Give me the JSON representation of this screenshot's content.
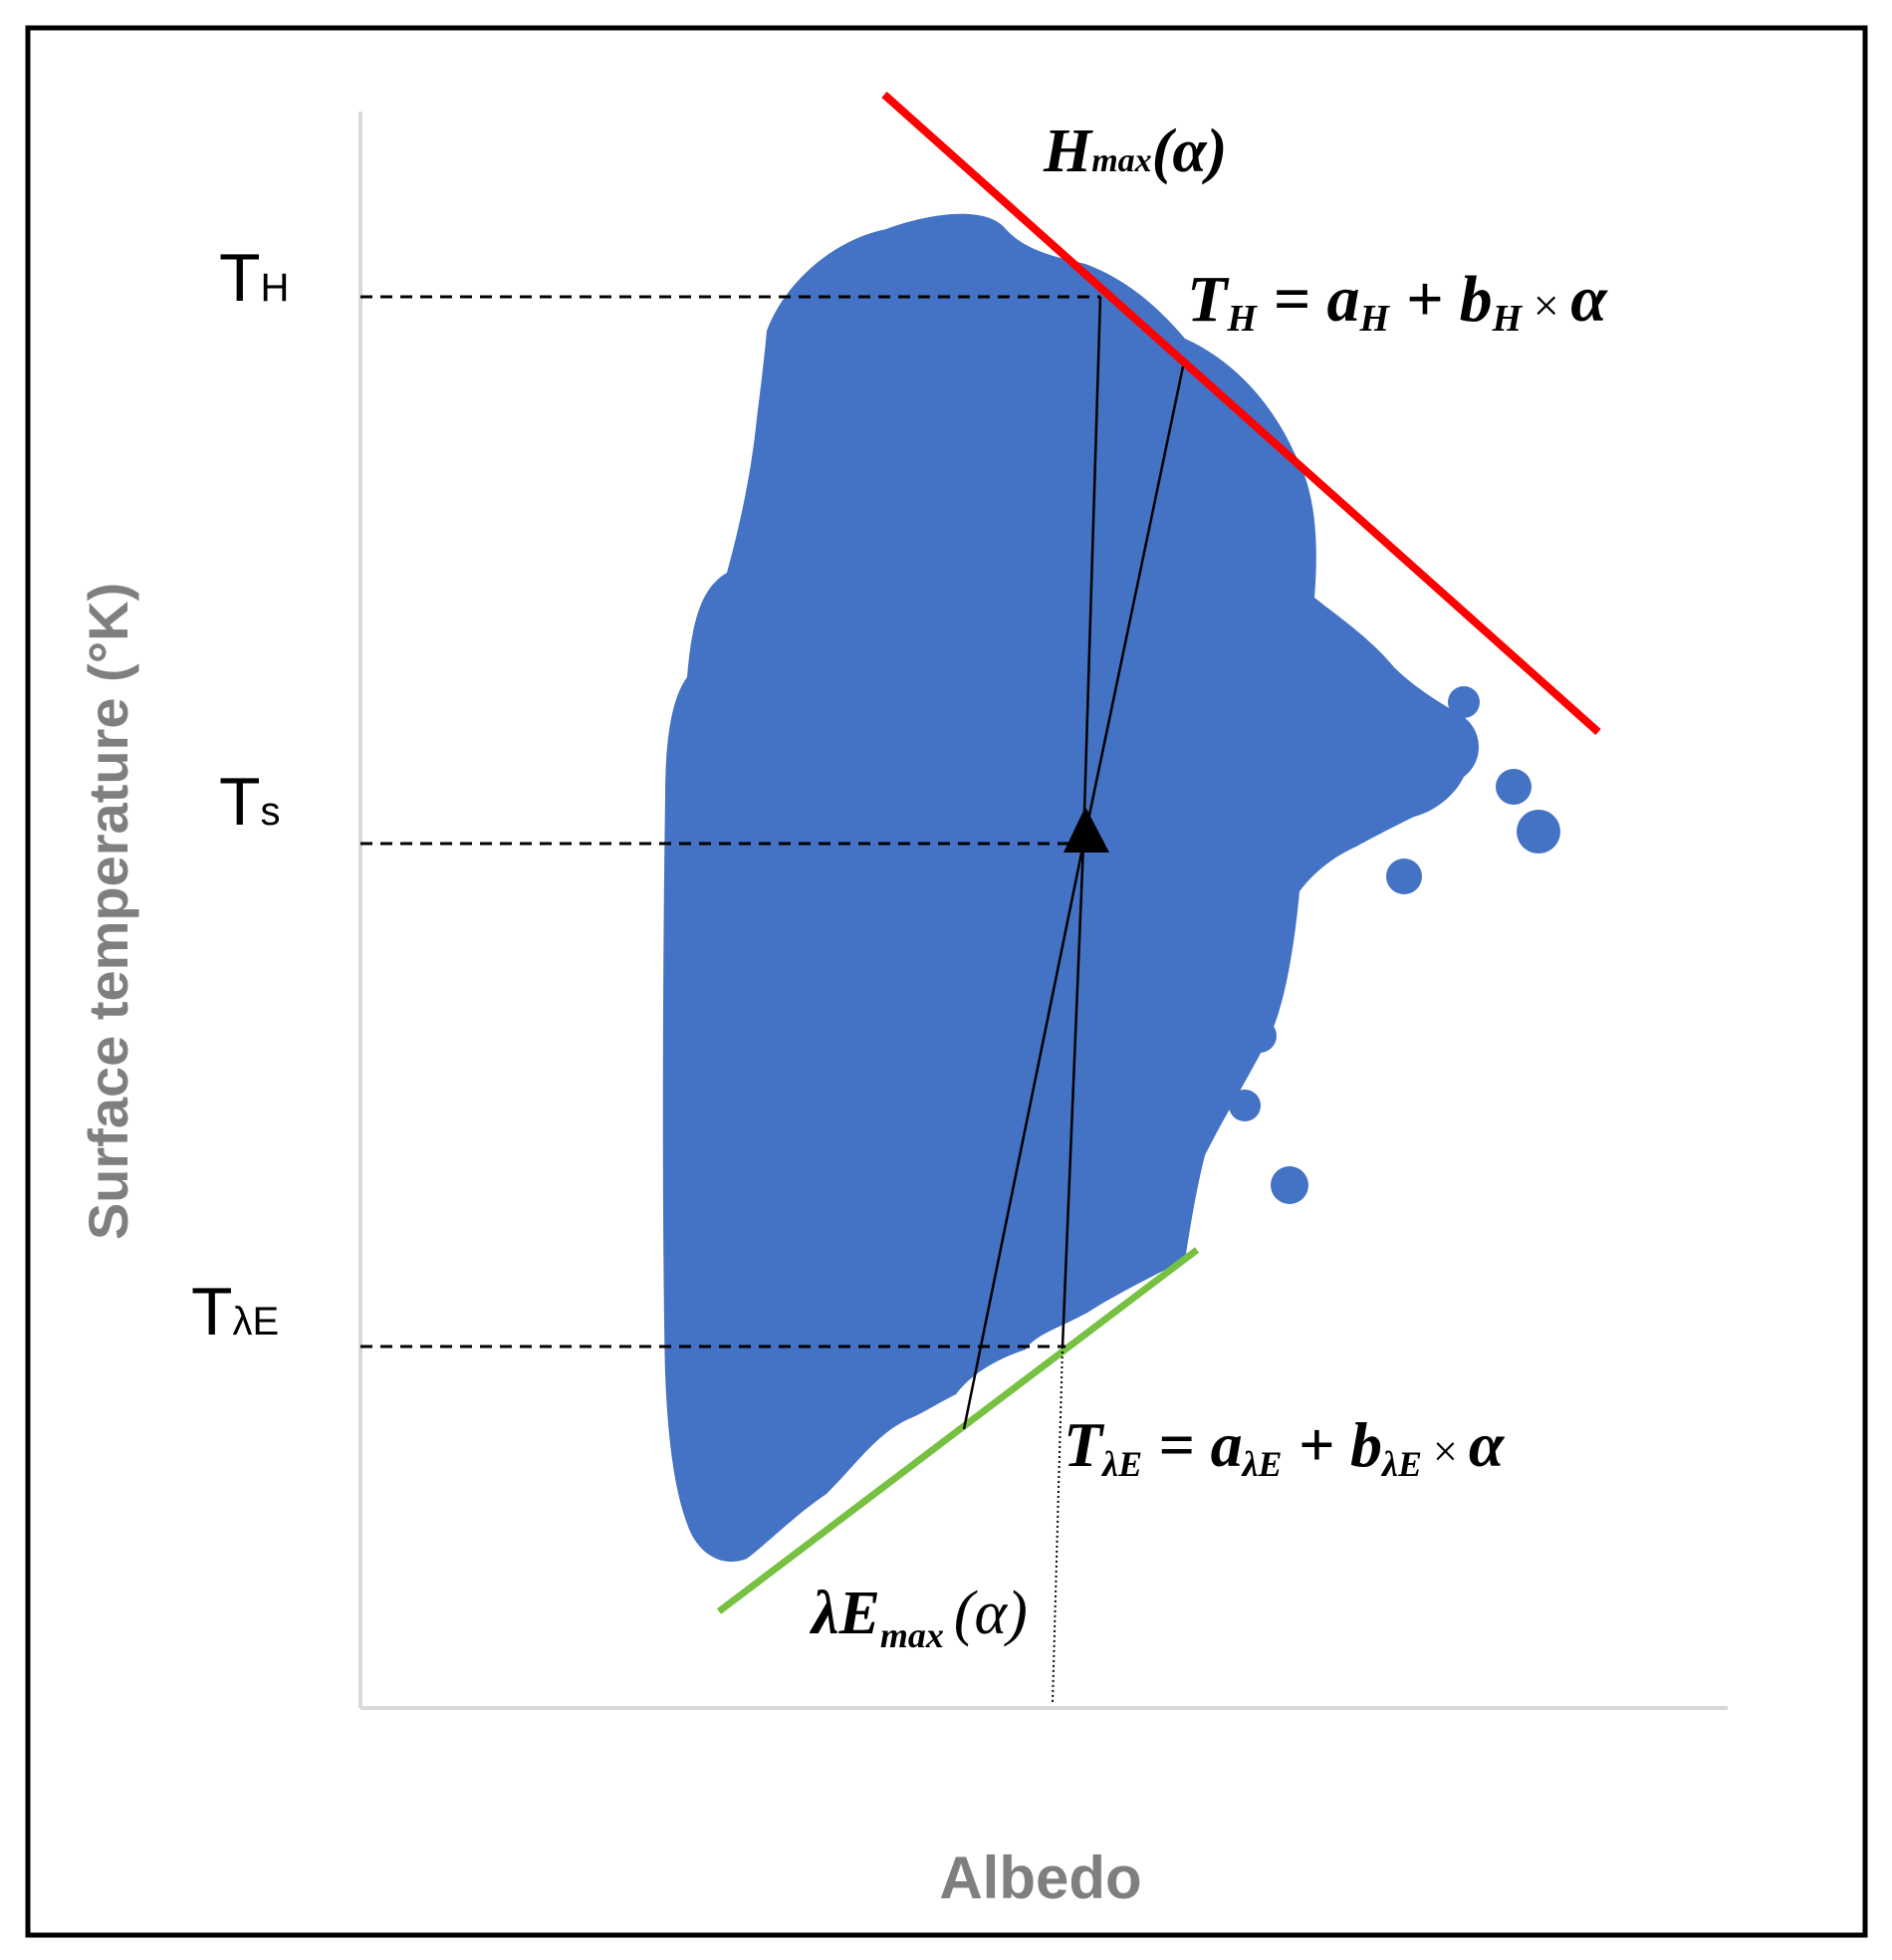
{
  "axes": {
    "x_title": "Albedo",
    "y_title": "Surface temperature (°K)"
  },
  "levels": {
    "th": {
      "main": "T",
      "sub": "H"
    },
    "ts": {
      "main": "T",
      "sub": "s"
    },
    "tle": {
      "main": "T",
      "sub": "λE"
    }
  },
  "edges": {
    "dry": {
      "name_main": "H",
      "name_sub": "max",
      "name_arg": "(α)",
      "eq": {
        "lhs": "T",
        "lhs_sub": "H",
        "a": "a",
        "a_sub": "H",
        "b": "b",
        "b_sub": "H",
        "alpha": "α"
      },
      "color": "#ff0000"
    },
    "wet": {
      "name_main": "λE",
      "name_sub": "max",
      "name_arg": "(α)",
      "eq": {
        "lhs": "T",
        "lhs_sub": "λE",
        "a": "a",
        "a_sub": "λE",
        "b": "b",
        "b_sub": "λE",
        "alpha": "α"
      },
      "color": "#77c142"
    }
  },
  "colors": {
    "points": "#4472c4",
    "axis": "#d9d9d9",
    "axis_title": "#7f7f7f",
    "marker": "#000000"
  },
  "marker_icon": "triangle-marker-icon"
}
